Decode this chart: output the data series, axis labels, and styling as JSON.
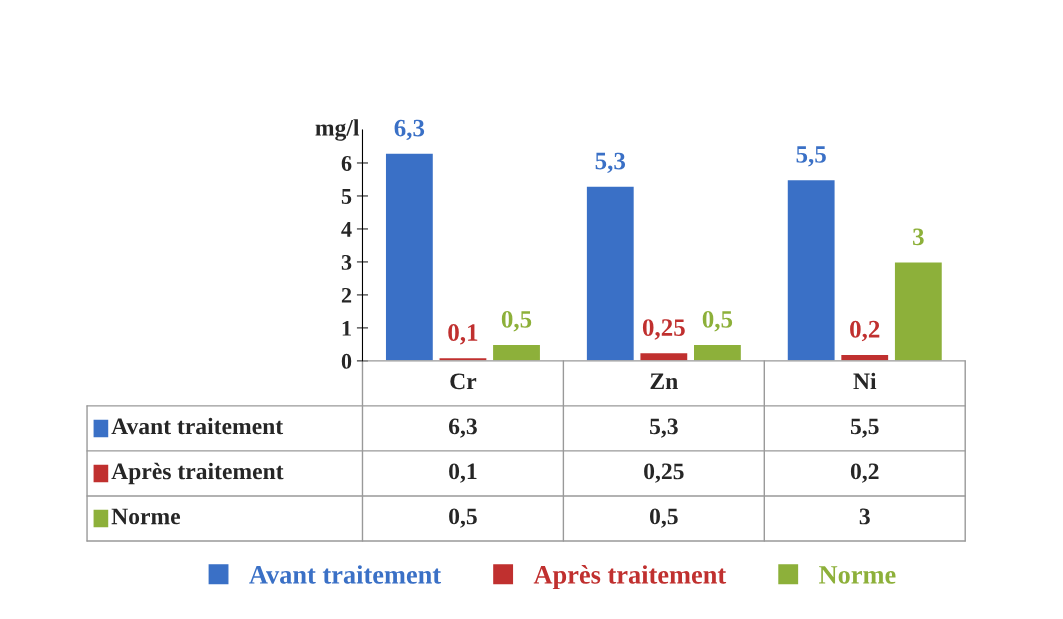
{
  "chart_data": {
    "type": "bar",
    "ylabel": "mg/l",
    "categories": [
      "Cr",
      "Zn",
      "Ni"
    ],
    "series": [
      {
        "name": "Avant traitement",
        "color": "#3a70c6",
        "values": [
          6.3,
          5.3,
          5.5
        ],
        "value_labels": [
          "6,3",
          "5,3",
          "5,5"
        ]
      },
      {
        "name": "Après traitement",
        "color": "#c0302f",
        "values": [
          0.1,
          0.25,
          0.2
        ],
        "value_labels": [
          "0,1",
          "0,25",
          "0,2"
        ]
      },
      {
        "name": "Norme",
        "color": "#8db03a",
        "values": [
          0.5,
          0.5,
          3
        ],
        "value_labels": [
          "0,5",
          "0,5",
          "3"
        ]
      }
    ],
    "ylim": [
      0,
      7
    ],
    "yticks": [
      0,
      1,
      2,
      3,
      4,
      5,
      6
    ],
    "grid": false,
    "legend": "bottom"
  }
}
